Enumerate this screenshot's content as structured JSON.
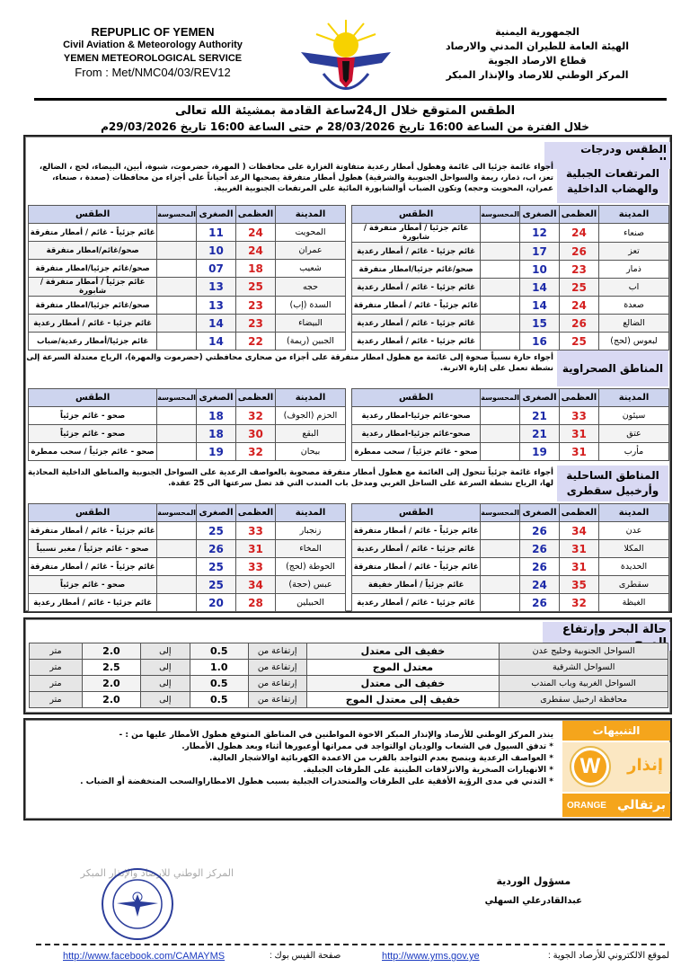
{
  "header": {
    "en": [
      "REPUPLIC OF YEMEN",
      "Civil Aviation & Meteorology Authority",
      "YEMEN METEOROLOGICAL SERVICE",
      "From : Met/NMC04/03/REV12"
    ],
    "ar": [
      "الجمهورية اليمنية",
      "الهيئة العامة للطيران المدني والارصاد",
      "قطاع الارصاد الجوية",
      "المركز الوطني للارصاد والإنذار المبكر"
    ],
    "title": "الطقس المتوقع خلال ال24ساعة القادمة بمشيئة الله تعالى",
    "period": "خلال الفترة من الساعة 16:00 تاريخ  28/03/2026 م   حتى الساعة 16:00 تاريخ  29/03/2026م"
  },
  "weather": {
    "section_title": "الطقس ودرجات الحرارة",
    "columns": [
      "المدينة",
      "العظمى",
      "الصغرى",
      "المحسوسة",
      "الطقس"
    ],
    "regions": [
      {
        "name": "المرتفعات الجبلية والهضاب الداخلية",
        "description": "أجواء غائمة جزئيا الى غائمة وهطول أمطار رعدية متفاوتة الغزارة على محافظات ( المهرة، حضرموت، شبوة، أبين، البيضاء، لحج ، الضالع، تعز، اب، ذمار، ريمة والسواحل الجنوبية والشرقية) هطول أمطار متفرقة يصحبها الرعد أحياناً على أجزاء من محافظات (صعدة ، صنعاء، عمران، المحويت وحجه) وتكون الضباب أوالشابورة المائية على المرتفعات الجنوبية الغربية.",
        "right": [
          [
            "صنعاء",
            "24",
            "12",
            "",
            "غائم جزئيا / أمطار متفرقة / شابورة"
          ],
          [
            "تعز",
            "26",
            "17",
            "",
            "غائم جزئيا - غائم / أمطار رعدية"
          ],
          [
            "ذمار",
            "23",
            "10",
            "",
            "صحو/غائم جزئيا/امطار متفرقة"
          ],
          [
            "اب",
            "25",
            "14",
            "",
            "غائم جزئيا - غائم / أمطار رعدية"
          ],
          [
            "صعدة",
            "24",
            "14",
            "",
            "غائم جزئياً - غائم / أمطار متفرقة"
          ],
          [
            "الضالع",
            "26",
            "15",
            "",
            "غائم جزئيا - غائم / أمطار رعدية"
          ],
          [
            "لبعوس (لحج)",
            "25",
            "16",
            "",
            "غائم جزئيا - غائم / أمطار رعدية"
          ]
        ],
        "left": [
          [
            "المحويت",
            "24",
            "11",
            "",
            "غائم جزئياً - غائم / أمطار متفرقة"
          ],
          [
            "عمران",
            "24",
            "10",
            "",
            "صحو/غائم/امطار متفرقة"
          ],
          [
            "شعيب",
            "18",
            "07",
            "",
            "صحو/غائم جزئيا/امطار متفرقة"
          ],
          [
            "حجه",
            "25",
            "13",
            "",
            "غائم جزئياً / أمطار متفرقة / شابورة"
          ],
          [
            "السدة (إب)",
            "23",
            "13",
            "",
            "صحو/غائم جزئيا/امطار متفرقة"
          ],
          [
            "البيضاء",
            "23",
            "14",
            "",
            "غائم جزئيا - غائم / أمطار رعدية"
          ],
          [
            "الجبين (ريمة)",
            "22",
            "14",
            "",
            "غائم جزئيا/أمطار رعدية/ضباب"
          ]
        ]
      },
      {
        "name": "المناطق الصحراوية",
        "description": "أجواء حارة نسبياً صحوة إلى غائمة مع هطول امطار متفرقة على أجزاء من صحارى محافظتي  (حضرموت والمهرة)، الرياح معتدلة السرعة إلى نشطة تعمل على إثارة الاتربة.",
        "right": [
          [
            "سيئون",
            "33",
            "21",
            "",
            "صحو-غائم جزئيا-امطار رعدية"
          ],
          [
            "عتق",
            "31",
            "21",
            "",
            "صحو-غائم جزئيا-امطار رعدية"
          ],
          [
            "مأرب",
            "31",
            "19",
            "",
            "صحو - غائم جزئياً / سحب ممطرة"
          ]
        ],
        "left": [
          [
            "الحزم (الجوف)",
            "32",
            "18",
            "",
            "صحو - غائم جزئياً"
          ],
          [
            "البقع",
            "30",
            "18",
            "",
            "صحو - غائم جزئياً"
          ],
          [
            "بيحان",
            "32",
            "19",
            "",
            "صحو - غائم جزئياً / سحب ممطرة"
          ]
        ]
      },
      {
        "name": "المناطق الساحلية وأرخبيل سقطرى",
        "description": "أجواء غائمة جزئياً تتحول إلى الغائمة مع هطول أمطار متفرقة مصحوبة بالعواصف الرعدية على السواحل الجنوبية والمناطق الداخلية المحاذية لها، الرياح نشطة السرعة على الساحل الغربي ومدخل باب المندب التي قد تصل سرعتها الى 25 عقدة.",
        "right": [
          [
            "عدن",
            "34",
            "26",
            "",
            "غائم جزئياً - غائم / أمطار متفرقة"
          ],
          [
            "المكلا",
            "31",
            "26",
            "",
            "غائم جزئيا - غائم / أمطار رعدية"
          ],
          [
            "الحديدة",
            "31",
            "26",
            "",
            "غائم جزئياً - غائم / أمطار متفرقة"
          ],
          [
            "سقطرى",
            "35",
            "24",
            "",
            "غائم جزئياً / أمطار خفيفة"
          ],
          [
            "الغيظة",
            "32",
            "26",
            "",
            "غائم جزئيا - غائم / أمطار رعدية"
          ]
        ],
        "left": [
          [
            "زنجبار",
            "33",
            "25",
            "",
            "غائم جزئياً - غائم / أمطار متفرقة"
          ],
          [
            "المخاء",
            "31",
            "26",
            "",
            "صحو - غائم جزئياً / مغبر نسبياً"
          ],
          [
            "الحوطة (لحج)",
            "33",
            "25",
            "",
            "غائم جزئياً - غائم / أمطار متفرقة"
          ],
          [
            "عبس (حجة)",
            "34",
            "25",
            "",
            "صحو - غائم جزئياً"
          ],
          [
            "الحبيلين",
            "28",
            "20",
            "",
            "غائم جزئيا - غائم / أمطار رعدية"
          ]
        ]
      }
    ]
  },
  "sea": {
    "title": "حالة البحر وإرتفاع الموج",
    "rows": [
      {
        "area": "السواحل الجنوبية وخليج عدن",
        "state": "خفيف الى معتدل",
        "from_label": "إرتفاعة من",
        "from": "0.5",
        "to_label": "إلى",
        "to": "2.0",
        "unit": "متر"
      },
      {
        "area": "السواحل الشرقية",
        "state": "معتدل الموج",
        "from_label": "إرتفاعة من",
        "from": "1.0",
        "to_label": "إلى",
        "to": "2.5",
        "unit": "متر"
      },
      {
        "area": "السواحل الغربية وباب المندب",
        "state": "خفيف الى معتدل",
        "from_label": "إرتفاعة من",
        "from": "0.5",
        "to_label": "إلى",
        "to": "2.0",
        "unit": "متر"
      },
      {
        "area": "محافظة ارخبيل سقطرى",
        "state": "خفيف إلى معتدل الموج",
        "from_label": "إرتفاعة من",
        "from": "0.5",
        "to_label": "إلى",
        "to": "2.0",
        "unit": "متر"
      }
    ]
  },
  "warnings": {
    "title": "التنبيهات والتحذيرات",
    "level_ar": "إنذار",
    "level_letter": "W",
    "level_color_ar": "برتقالي",
    "level_color_en": "ORANGE",
    "color": "#f5a51c",
    "intro": "ينذر المركز الوطني للأرصاد والإنذار المبكر الاخوة المواطنين في المناطق المتوقع هطول الأمطار عليها من : -",
    "items": [
      "* تدفق السيول في الشعاب والوديان اوالتواجد في ممراتها أوعبورها أثناء وبعد هطول الأمطار.",
      "* العواصف الرعدية وينصح بعدم التواجد بالقرب من الاعمدة الكهربائية اوالاشجار العالية.",
      "* الانهيارات الصخرية والانزلاقات الطينية على الطرقات الجبلية.",
      "* التدني في مدى الرؤية الأفقية على الطرقات والمنحدرات الجبلية بسبب هطول الامطاراوالسحب المنخفضة أو الضباب ."
    ]
  },
  "signature": {
    "title": "مسؤول الوردية",
    "name": "عبدالقادرعلي السهلي",
    "stamp_text": "المركز الوطني للارصاد والإنذار المبكر"
  },
  "footer": {
    "website_label": "لموقع الالكتروني للأرصاد الجوية  :",
    "website": "http://www.yms.gov.ye",
    "facebook_label": "صفحة الفيس بوك :",
    "facebook": "http://www.facebook.com/CAMAYMS"
  }
}
